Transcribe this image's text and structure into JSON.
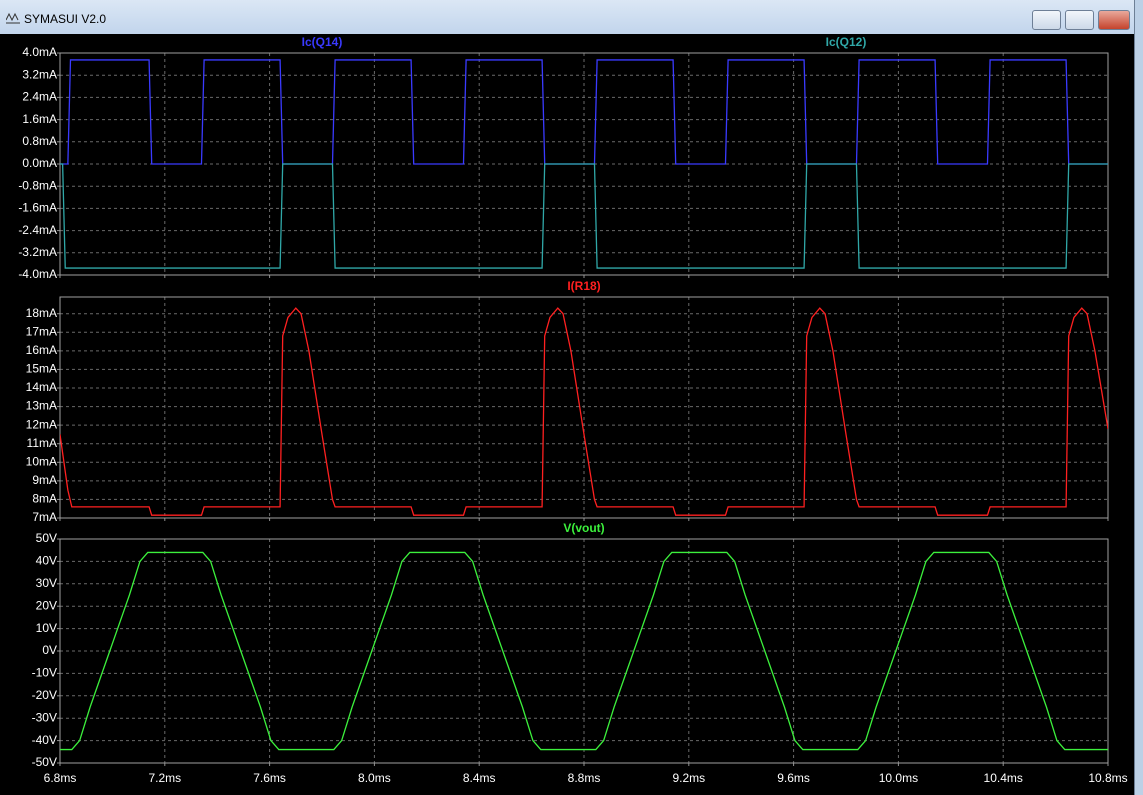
{
  "window": {
    "title": "SYMASUI V2.0"
  },
  "chart_data": [
    {
      "type": "line",
      "xlim": [
        6.8,
        10.8
      ],
      "ylim": [
        -4.0,
        4.0
      ],
      "grid": true,
      "yticks": [
        {
          "value": 4.0,
          "label": "4.0mA"
        },
        {
          "value": 3.2,
          "label": "3.2mA"
        },
        {
          "value": 2.4,
          "label": "2.4mA"
        },
        {
          "value": 1.6,
          "label": "1.6mA"
        },
        {
          "value": 0.8,
          "label": "0.8mA"
        },
        {
          "value": 0,
          "label": "0.0mA"
        },
        {
          "value": -0.8,
          "label": "-0.8mA"
        },
        {
          "value": -1.6,
          "label": "-1.6mA"
        },
        {
          "value": -2.4,
          "label": "-2.4mA"
        },
        {
          "value": -3.2,
          "label": "-3.2mA"
        },
        {
          "value": -4.0,
          "label": "-4.0mA"
        }
      ],
      "series": [
        {
          "name": "Ic(Q14)",
          "color": "#3a3aff",
          "x": [
            6.8,
            6.83,
            6.84,
            7.14,
            7.15,
            7.34,
            7.35,
            7.64,
            7.65,
            7.84,
            7.85,
            8.14,
            8.15,
            8.34,
            8.35,
            8.64,
            8.65,
            8.84,
            8.85,
            9.14,
            9.15,
            9.34,
            9.35,
            9.64,
            9.65,
            9.84,
            9.85,
            10.14,
            10.15,
            10.34,
            10.35,
            10.64,
            10.65,
            10.8
          ],
          "values": [
            0,
            0,
            3.75,
            3.75,
            0,
            0,
            3.75,
            3.75,
            0,
            0,
            3.75,
            3.75,
            0,
            0,
            3.75,
            3.75,
            0,
            0,
            3.75,
            3.75,
            0,
            0,
            3.75,
            3.75,
            0,
            0,
            3.75,
            3.75,
            0,
            0,
            3.75,
            3.75,
            0,
            0
          ]
        },
        {
          "name": "Ic(Q12)",
          "color": "#30a8a8",
          "x": [
            6.8,
            6.81,
            6.82,
            7.64,
            7.65,
            7.84,
            7.85,
            8.64,
            8.65,
            8.84,
            8.85,
            9.64,
            9.65,
            9.84,
            9.85,
            10.64,
            10.65,
            10.8
          ],
          "values": [
            0,
            0,
            -3.75,
            -3.75,
            0,
            0,
            -3.75,
            -3.75,
            0,
            0,
            -3.75,
            -3.75,
            0,
            0,
            -3.75,
            -3.75,
            0,
            0
          ]
        }
      ]
    },
    {
      "type": "line",
      "xlim": [
        6.8,
        10.8
      ],
      "ylim": [
        7,
        18.9
      ],
      "grid": true,
      "yticks": [
        {
          "value": 18,
          "label": "18mA"
        },
        {
          "value": 17,
          "label": "17mA"
        },
        {
          "value": 16,
          "label": "16mA"
        },
        {
          "value": 15,
          "label": "15mA"
        },
        {
          "value": 14,
          "label": "14mA"
        },
        {
          "value": 13,
          "label": "13mA"
        },
        {
          "value": 12,
          "label": "12mA"
        },
        {
          "value": 11,
          "label": "11mA"
        },
        {
          "value": 10,
          "label": "10mA"
        },
        {
          "value": 9,
          "label": "9mA"
        },
        {
          "value": 8,
          "label": "8mA"
        },
        {
          "value": 7,
          "label": "7mA"
        }
      ],
      "series": [
        {
          "name": "I(R18)",
          "color": "#ff2020",
          "x": [
            6.8,
            6.83,
            6.845,
            7.14,
            7.15,
            7.34,
            7.35,
            7.64,
            7.65,
            7.67,
            7.7,
            7.72,
            7.75,
            7.8,
            7.84,
            7.85,
            8.14,
            8.15,
            8.34,
            8.35,
            8.64,
            8.65,
            8.67,
            8.7,
            8.72,
            8.75,
            8.8,
            8.84,
            8.85,
            9.14,
            9.15,
            9.34,
            9.35,
            9.64,
            9.65,
            9.67,
            9.7,
            9.72,
            9.75,
            9.8,
            9.84,
            9.85,
            10.14,
            10.15,
            10.34,
            10.35,
            10.64,
            10.65,
            10.67,
            10.7,
            10.72,
            10.75,
            10.8
          ],
          "values": [
            11.5,
            8.5,
            7.6,
            7.6,
            7.15,
            7.15,
            7.6,
            7.6,
            16.8,
            17.8,
            18.3,
            18.0,
            16.0,
            11.5,
            8.0,
            7.6,
            7.6,
            7.15,
            7.15,
            7.6,
            7.6,
            16.8,
            17.8,
            18.3,
            18.0,
            16.0,
            11.5,
            8.0,
            7.6,
            7.6,
            7.15,
            7.15,
            7.6,
            7.6,
            16.8,
            17.8,
            18.3,
            18.0,
            16.0,
            11.5,
            8.0,
            7.6,
            7.6,
            7.15,
            7.15,
            7.6,
            7.6,
            16.8,
            17.8,
            18.3,
            18.0,
            16.0,
            11.8
          ]
        }
      ]
    },
    {
      "type": "line",
      "xlim": [
        6.8,
        10.8
      ],
      "ylim": [
        -50,
        50
      ],
      "grid": true,
      "xticks": [
        {
          "value": 6.8,
          "label": "6.8ms"
        },
        {
          "value": 7.2,
          "label": "7.2ms"
        },
        {
          "value": 7.6,
          "label": "7.6ms"
        },
        {
          "value": 8.0,
          "label": "8.0ms"
        },
        {
          "value": 8.4,
          "label": "8.4ms"
        },
        {
          "value": 8.8,
          "label": "8.8ms"
        },
        {
          "value": 9.2,
          "label": "9.2ms"
        },
        {
          "value": 9.6,
          "label": "9.6ms"
        },
        {
          "value": 10.0,
          "label": "10.0ms"
        },
        {
          "value": 10.4,
          "label": "10.4ms"
        },
        {
          "value": 10.8,
          "label": "10.8ms"
        }
      ],
      "yticks": [
        {
          "value": 50,
          "label": "50V"
        },
        {
          "value": 40,
          "label": "40V"
        },
        {
          "value": 30,
          "label": "30V"
        },
        {
          "value": 20,
          "label": "20V"
        },
        {
          "value": 10,
          "label": "10V"
        },
        {
          "value": 0,
          "label": "0V"
        },
        {
          "value": -10,
          "label": "-10V"
        },
        {
          "value": -20,
          "label": "-20V"
        },
        {
          "value": -30,
          "label": "-30V"
        },
        {
          "value": -40,
          "label": "-40V"
        },
        {
          "value": -50,
          "label": "-50V"
        }
      ],
      "series": [
        {
          "name": "V(vout)",
          "color": "#3cf03c",
          "x": [
            6.8,
            6.845,
            6.875,
            6.915,
            6.99,
            7.065,
            7.105,
            7.135,
            7.345,
            7.375,
            7.415,
            7.49,
            7.565,
            7.605,
            7.635,
            7.845,
            7.875,
            7.915,
            7.99,
            8.065,
            8.105,
            8.135,
            8.345,
            8.375,
            8.415,
            8.49,
            8.565,
            8.605,
            8.635,
            8.845,
            8.875,
            8.915,
            8.99,
            9.065,
            9.105,
            9.135,
            9.345,
            9.375,
            9.415,
            9.49,
            9.565,
            9.605,
            9.635,
            9.845,
            9.875,
            9.915,
            9.99,
            10.065,
            10.105,
            10.135,
            10.345,
            10.375,
            10.415,
            10.49,
            10.565,
            10.605,
            10.635,
            10.8
          ],
          "values": [
            -44,
            -44,
            -40,
            -25,
            0,
            25,
            40,
            44,
            44,
            40,
            25,
            0,
            -25,
            -40,
            -44,
            -44,
            -40,
            -25,
            0,
            25,
            40,
            44,
            44,
            40,
            25,
            0,
            -25,
            -40,
            -44,
            -44,
            -40,
            -25,
            0,
            25,
            40,
            44,
            44,
            40,
            25,
            0,
            -25,
            -40,
            -44,
            -44,
            -40,
            -25,
            0,
            25,
            40,
            44,
            44,
            40,
            25,
            0,
            -25,
            -40,
            -44,
            -44
          ]
        }
      ]
    }
  ]
}
